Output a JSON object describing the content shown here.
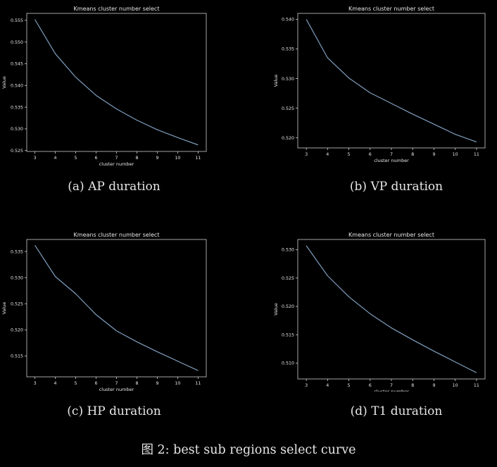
{
  "subfigures": [
    {
      "caption": "(a) AP duration"
    },
    {
      "caption": "(b) VP duration"
    },
    {
      "caption": "(c) HP duration"
    },
    {
      "caption": "(d) T1 duration"
    }
  ],
  "figure_caption": "图 2: best sub regions select curve",
  "colors": {
    "background": "#000000",
    "line": "#7f9fbf",
    "axes": "#cfcfcf",
    "text": "#e8e8e8"
  },
  "chart_data": [
    {
      "type": "line",
      "title": "Kmeans cluster number select",
      "xlabel": "cluster number",
      "ylabel": "Value",
      "x": [
        3,
        4,
        5,
        6,
        7,
        8,
        9,
        10,
        11
      ],
      "series": [
        {
          "values": [
            0.5552,
            0.5473,
            0.5419,
            0.5377,
            0.5346,
            0.532,
            0.5298,
            0.528,
            0.5263
          ]
        }
      ],
      "xticks": [
        "3",
        "4",
        "5",
        "6",
        "7",
        "8",
        "9",
        "10",
        "11"
      ],
      "yticks": [
        "0.525",
        "0.530",
        "0.535",
        "0.540",
        "0.545",
        "0.550",
        "0.555"
      ],
      "xlim": [
        2.6,
        11.4
      ],
      "ylim": [
        0.5248,
        0.5566
      ],
      "grid": false
    },
    {
      "type": "line",
      "title": "Kmeans cluster number select",
      "xlabel": "cluster number",
      "ylabel": "Value",
      "x": [
        3,
        4,
        5,
        6,
        7,
        8,
        9,
        10,
        11
      ],
      "series": [
        {
          "values": [
            0.54,
            0.5335,
            0.5301,
            0.5276,
            0.5258,
            0.524,
            0.5223,
            0.5206,
            0.5193
          ]
        }
      ],
      "xticks": [
        "3",
        "4",
        "5",
        "6",
        "7",
        "8",
        "9",
        "10",
        "11"
      ],
      "yticks": [
        "0.520",
        "0.525",
        "0.530",
        "0.535",
        "0.540"
      ],
      "xlim": [
        2.6,
        11.4
      ],
      "ylim": [
        0.5183,
        0.541
      ],
      "grid": false
    },
    {
      "type": "line",
      "title": "Kmeans cluster number select",
      "xlabel": "cluster number",
      "ylabel": "Value",
      "x": [
        3,
        4,
        5,
        6,
        7,
        8,
        9,
        10,
        11
      ],
      "series": [
        {
          "values": [
            0.5362,
            0.5302,
            0.5269,
            0.5229,
            0.5198,
            0.5177,
            0.5158,
            0.514,
            0.5122
          ]
        }
      ],
      "xticks": [
        "3",
        "4",
        "5",
        "6",
        "7",
        "8",
        "9",
        "10",
        "11"
      ],
      "yticks": [
        "0.515",
        "0.520",
        "0.525",
        "0.530",
        "0.535"
      ],
      "xlim": [
        2.6,
        11.4
      ],
      "ylim": [
        0.511,
        0.5373
      ],
      "grid": false
    },
    {
      "type": "line",
      "title": "Kmeans cluster number select",
      "xlabel": "cluster number",
      "ylabel": "Value",
      "x": [
        3,
        4,
        5,
        6,
        7,
        8,
        9,
        10,
        11
      ],
      "series": [
        {
          "values": [
            0.5307,
            0.5254,
            0.5217,
            0.5187,
            0.5162,
            0.5141,
            0.5121,
            0.5102,
            0.5083
          ]
        }
      ],
      "xticks": [
        "3",
        "4",
        "5",
        "6",
        "7",
        "8",
        "9",
        "10",
        "11"
      ],
      "yticks": [
        "0.510",
        "0.515",
        "0.520",
        "0.525",
        "0.530"
      ],
      "xlim": [
        2.6,
        11.4
      ],
      "ylim": [
        0.5072,
        0.5318
      ],
      "grid": false
    }
  ]
}
